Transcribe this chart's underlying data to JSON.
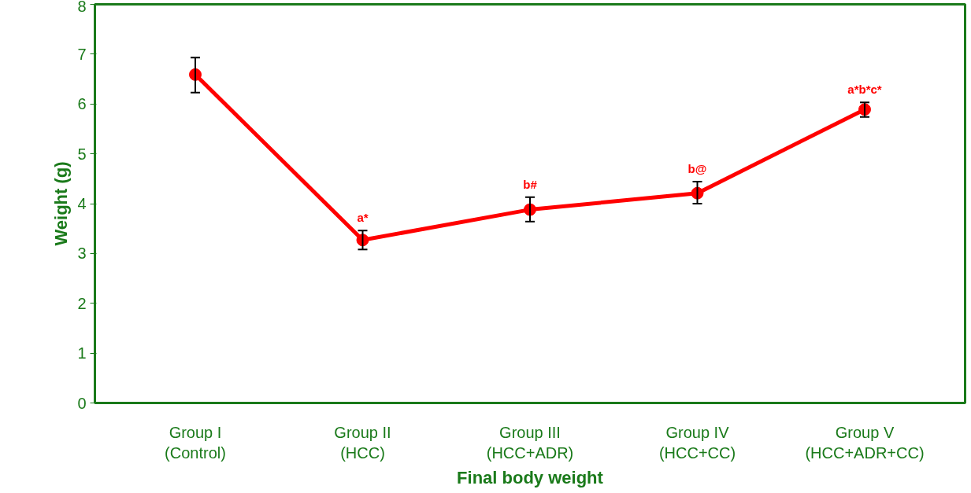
{
  "chart_data": {
    "type": "line",
    "xlabel": "Final body weight",
    "ylabel": "Weight (g)",
    "categories": [
      "Group I\n(Control)",
      "Group II\n(HCC)",
      "Group III\n(HCC+ADR)",
      "Group IV\n(HCC+CC)",
      "Group V\n(HCC+ADR+CC)"
    ],
    "series": [
      {
        "color": "#ff0000",
        "values": [
          6.59,
          3.27,
          3.88,
          4.21,
          5.89
        ],
        "errors": [
          [
            6.23,
            6.93
          ],
          [
            3.08,
            3.46
          ],
          [
            3.64,
            4.13
          ],
          [
            4.0,
            4.44
          ],
          [
            5.74,
            6.03
          ]
        ]
      }
    ],
    "annotations": [
      {
        "text": "a*",
        "x": "Group II\n(HCC)",
        "y": 3.27
      },
      {
        "text": "b#",
        "x": "Group III\n(HCC+ADR)",
        "y": 3.88
      },
      {
        "text": "b@",
        "x": "Group IV\n(HCC+CC)",
        "y": 4.21
      },
      {
        "text": "a*b*c*",
        "x": "Group V\n(HCC+ADR+CC)",
        "y": 5.89
      }
    ],
    "ylim": [
      0,
      8
    ],
    "yticks": [
      0,
      1,
      2,
      3,
      4,
      5,
      6,
      7,
      8
    ],
    "grid": false,
    "marker": "circle",
    "line_style": "solid"
  }
}
